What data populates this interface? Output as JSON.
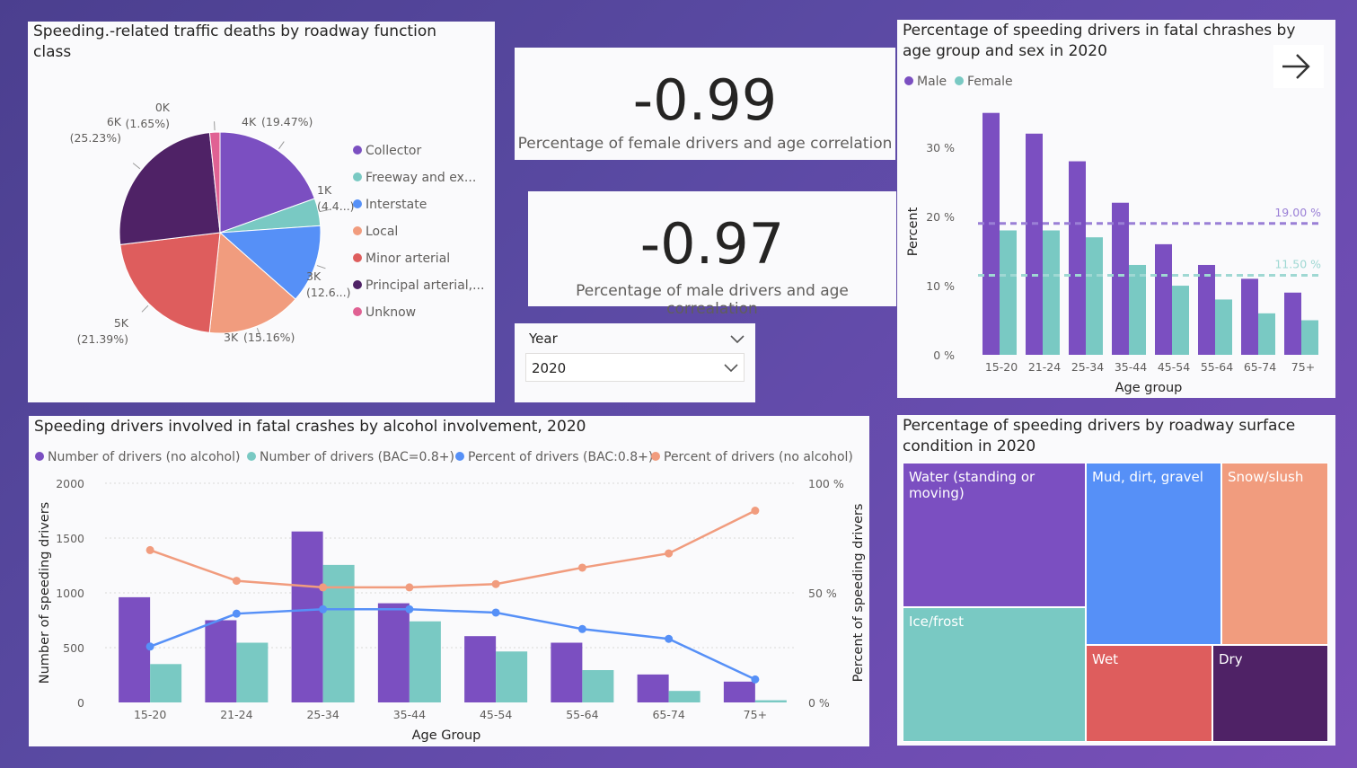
{
  "pie": {
    "title": "Speeding.-related traffic deaths by roadway function class",
    "chart_data": {
      "type": "pie",
      "title": "Speeding.-related traffic deaths by roadway function class",
      "slices": [
        {
          "name": "Collector",
          "percent": 19.47,
          "value_label": "4K",
          "pct_label": "(19.47%)",
          "color": "#7b4fc1"
        },
        {
          "name": "Freeway and ex...",
          "percent": 4.4,
          "value_label": "1K",
          "pct_label": "(4.4...)",
          "color": "#79c9c3"
        },
        {
          "name": "Interstate",
          "percent": 12.6,
          "value_label": "3K",
          "pct_label": "(12.6...)",
          "color": "#5690f7"
        },
        {
          "name": "Local",
          "percent": 15.16,
          "value_label": "3K",
          "pct_label": "(15.16%)",
          "color": "#f19c7e"
        },
        {
          "name": "Minor arterial",
          "percent": 21.39,
          "value_label": "5K",
          "pct_label": "(21.39%)",
          "color": "#de5d5d"
        },
        {
          "name": "Principal arterial,...",
          "percent": 25.23,
          "value_label": "6K",
          "pct_label": "(25.23%)",
          "color": "#4f2266"
        },
        {
          "name": "Unknow",
          "percent": 1.65,
          "value_label": "0K",
          "pct_label": "(1.65%)",
          "color": "#e06193"
        }
      ]
    }
  },
  "kpi_female": {
    "value": "-0.99",
    "label": "Percentage of female drivers and age correlation"
  },
  "kpi_male": {
    "value": "-0.97",
    "label": "Percentage of male drivers and age correalation"
  },
  "year_filter": {
    "header": "Year",
    "selected": "2020"
  },
  "agesex": {
    "title": "Percentage of speeding drivers in fatal chrashes by age group and sex in 2020",
    "chart_data": {
      "type": "bar",
      "title": "Percentage of speeding drivers in fatal chrashes by age group and sex in 2020",
      "categories": [
        "15-20",
        "21-24",
        "25-34",
        "35-44",
        "45-54",
        "55-64",
        "65-74",
        "75+"
      ],
      "series": [
        {
          "name": "Male",
          "color": "#7b4fc1",
          "values": [
            35,
            32,
            28,
            22,
            16,
            13,
            11,
            9
          ]
        },
        {
          "name": "Female",
          "color": "#79c9c3",
          "values": [
            18,
            18,
            17,
            13,
            10,
            8,
            6,
            5
          ]
        }
      ],
      "ylim": [
        0,
        36
      ],
      "yticks": [
        {
          "v": 0,
          "label": "0 %"
        },
        {
          "v": 10,
          "label": "10 %"
        },
        {
          "v": 20,
          "label": "20 %"
        },
        {
          "v": 30,
          "label": "30 %"
        }
      ],
      "reference_lines": [
        {
          "value": 19,
          "label": "19.00 %",
          "color": "#9a7fd6"
        },
        {
          "value": 11.5,
          "label": "11.50 %",
          "color": "#9fd8d3"
        }
      ],
      "xlabel": "Age group",
      "ylabel": "Percent",
      "legend_position": "top-left"
    }
  },
  "alcohol": {
    "title": "Speeding drivers involved in fatal crashes by alcohol involvement, 2020",
    "chart_data": {
      "type": "bar",
      "title": "Speeding drivers involved in fatal crashes by alcohol involvement, 2020",
      "categories": [
        "15-20",
        "21-24",
        "25-34",
        "35-44",
        "45-54",
        "55-64",
        "65-74",
        "75+"
      ],
      "bar_series": [
        {
          "name": "Number of drivers (no alcohol)",
          "color": "#7b4fc1",
          "values": [
            960,
            750,
            1560,
            905,
            605,
            545,
            255,
            190
          ]
        },
        {
          "name": "Number of drivers (BAC=0.8+)",
          "color": "#79c9c3",
          "values": [
            350,
            545,
            1255,
            740,
            465,
            295,
            105,
            20
          ]
        }
      ],
      "line_series": [
        {
          "name": "Percent of drivers (BAC:0.8+)",
          "color": "#5690f7",
          "values": [
            25.5,
            40.5,
            42.5,
            42.5,
            41,
            33.5,
            29,
            10.5
          ]
        },
        {
          "name": "Percent of drivers (no alcohol)",
          "color": "#f19c7e",
          "values": [
            69.5,
            55.5,
            52.5,
            52.5,
            54,
            61.5,
            68,
            87.5
          ]
        }
      ],
      "y_left": {
        "label": "Number of speeding drivers",
        "range": [
          0,
          2000
        ],
        "ticks": [
          {
            "v": 0,
            "label": "0"
          },
          {
            "v": 500,
            "label": "500"
          },
          {
            "v": 1000,
            "label": "1000"
          },
          {
            "v": 1500,
            "label": "1500"
          },
          {
            "v": 2000,
            "label": "2000"
          }
        ]
      },
      "y_right": {
        "label": "Percent of speeding drivers",
        "range": [
          0,
          100
        ],
        "ticks": [
          {
            "v": 0,
            "label": "0 %"
          },
          {
            "v": 50,
            "label": "50 %"
          },
          {
            "v": 100,
            "label": "100 %"
          }
        ]
      },
      "xlabel": "Age Group",
      "legend_position": "top-left"
    }
  },
  "treemap": {
    "title": "Percentage of speeding drivers by roadway surface condition in 2020",
    "chart_data": {
      "type": "treemap",
      "title": "Percentage of speeding drivers by roadway surface condition in 2020",
      "cells": [
        {
          "name": "Water (standing or moving)",
          "color": "#7b4fc1"
        },
        {
          "name": "Mud, dirt, gravel",
          "color": "#5690f7"
        },
        {
          "name": "Snow/slush",
          "color": "#f19c7e"
        },
        {
          "name": "Ice/frost",
          "color": "#79c9c3"
        },
        {
          "name": "Wet",
          "color": "#de5d5d"
        },
        {
          "name": "Dry",
          "color": "#4f2266"
        }
      ]
    }
  }
}
